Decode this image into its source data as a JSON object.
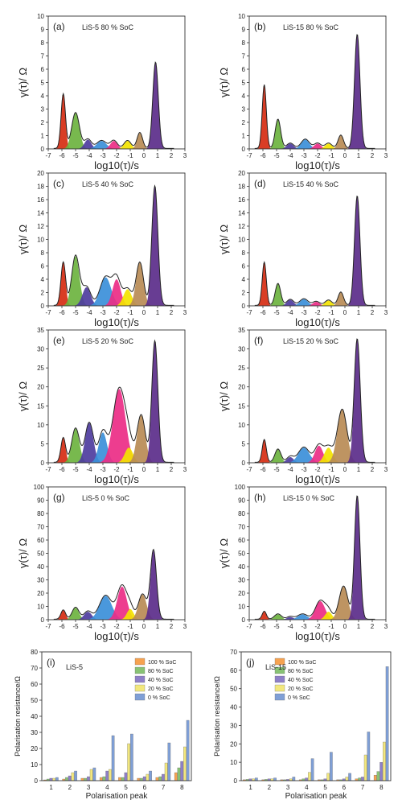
{
  "figure": {
    "panel_labels": [
      "(a)",
      "(b)",
      "(c)",
      "(d)",
      "(e)",
      "(f)",
      "(g)",
      "(h)",
      "(i)",
      "(j)"
    ]
  },
  "colors": {
    "peaks": [
      "#d62d12",
      "#6db33f",
      "#4e3c9e",
      "#3b8fd9",
      "#ec2d86",
      "#f3e300",
      "#b98b55",
      "#5b2c8a"
    ],
    "bars": [
      "#f6a250",
      "#88c274",
      "#8e7fc8",
      "#f2e77d",
      "#7f9fd6"
    ],
    "envelope": "#222222"
  },
  "chart_data": [
    {
      "type": "area",
      "panel": "(a)",
      "title": "LiS-5 80 % SoC",
      "xlabel": "log10(τ)/s",
      "ylabel": "γ(τ)/ Ω",
      "xlim": [
        -7,
        3
      ],
      "ylim": [
        0,
        10
      ],
      "xticks": [
        -7,
        -6,
        -5,
        -4,
        -3,
        -2,
        -1,
        0,
        1,
        2,
        3
      ],
      "yticks": [
        0,
        1,
        2,
        3,
        4,
        5,
        6,
        7,
        8,
        9,
        10
      ],
      "peaks": [
        {
          "peak": 1,
          "center": -5.9,
          "height": 4.1,
          "width": 0.16
        },
        {
          "peak": 2,
          "center": -5.0,
          "height": 2.7,
          "width": 0.28
        },
        {
          "peak": 3,
          "center": -4.1,
          "height": 0.7,
          "width": 0.25
        },
        {
          "peak": 4,
          "center": -3.1,
          "height": 0.6,
          "width": 0.35
        },
        {
          "peak": 5,
          "center": -2.2,
          "height": 0.6,
          "width": 0.25
        },
        {
          "peak": 6,
          "center": -1.2,
          "height": 0.6,
          "width": 0.25
        },
        {
          "peak": 7,
          "center": -0.3,
          "height": 1.2,
          "width": 0.2
        },
        {
          "peak": 8,
          "center": 0.85,
          "height": 6.5,
          "width": 0.2
        }
      ]
    },
    {
      "type": "area",
      "panel": "(b)",
      "title": "LiS-15 80 % SoC",
      "xlabel": "log10(τ)/s",
      "ylabel": "γ(τ)/ Ω",
      "xlim": [
        -7,
        3
      ],
      "ylim": [
        0,
        10
      ],
      "xticks": [
        -7,
        -6,
        -5,
        -4,
        -3,
        -2,
        -1,
        0,
        1,
        2,
        3
      ],
      "yticks": [
        0,
        1,
        2,
        3,
        4,
        5,
        6,
        7,
        8,
        9,
        10
      ],
      "peaks": [
        {
          "peak": 1,
          "center": -5.9,
          "height": 4.8,
          "width": 0.15
        },
        {
          "peak": 2,
          "center": -4.9,
          "height": 2.2,
          "width": 0.2
        },
        {
          "peak": 3,
          "center": -4.0,
          "height": 0.4,
          "width": 0.25
        },
        {
          "peak": 4,
          "center": -2.9,
          "height": 0.7,
          "width": 0.3
        },
        {
          "peak": 5,
          "center": -2.0,
          "height": 0.4,
          "width": 0.25
        },
        {
          "peak": 6,
          "center": -1.2,
          "height": 0.4,
          "width": 0.25
        },
        {
          "peak": 7,
          "center": -0.3,
          "height": 1.0,
          "width": 0.2
        },
        {
          "peak": 8,
          "center": 0.9,
          "height": 8.6,
          "width": 0.2
        }
      ]
    },
    {
      "type": "area",
      "panel": "(c)",
      "title": "LiS-5 40 % SoC",
      "xlabel": "log10(τ)/s",
      "ylabel": "γ(τ)/ Ω",
      "xlim": [
        -7,
        3
      ],
      "ylim": [
        0,
        20
      ],
      "xticks": [
        -7,
        -6,
        -5,
        -4,
        -3,
        -2,
        -1,
        0,
        1,
        2,
        3
      ],
      "yticks": [
        0,
        2,
        4,
        6,
        8,
        10,
        12,
        14,
        16,
        18,
        20
      ],
      "peaks": [
        {
          "peak": 1,
          "center": -5.9,
          "height": 6.5,
          "width": 0.17
        },
        {
          "peak": 2,
          "center": -5.0,
          "height": 7.5,
          "width": 0.28
        },
        {
          "peak": 3,
          "center": -4.2,
          "height": 2.8,
          "width": 0.3
        },
        {
          "peak": 4,
          "center": -2.8,
          "height": 4.3,
          "width": 0.4
        },
        {
          "peak": 5,
          "center": -2.0,
          "height": 4.0,
          "width": 0.3
        },
        {
          "peak": 6,
          "center": -1.2,
          "height": 2.5,
          "width": 0.3
        },
        {
          "peak": 7,
          "center": -0.3,
          "height": 6.5,
          "width": 0.27
        },
        {
          "peak": 8,
          "center": 0.8,
          "height": 18.0,
          "width": 0.22
        }
      ]
    },
    {
      "type": "area",
      "panel": "(d)",
      "title": "LiS-15 40 % SoC",
      "xlabel": "log10(τ)/s",
      "ylabel": "γ(τ)/ Ω",
      "xlim": [
        -7,
        3
      ],
      "ylim": [
        0,
        20
      ],
      "xticks": [
        -7,
        -6,
        -5,
        -4,
        -3,
        -2,
        -1,
        0,
        1,
        2,
        3
      ],
      "yticks": [
        0,
        2,
        4,
        6,
        8,
        10,
        12,
        14,
        16,
        18,
        20
      ],
      "peaks": [
        {
          "peak": 1,
          "center": -5.9,
          "height": 6.5,
          "width": 0.15
        },
        {
          "peak": 2,
          "center": -4.9,
          "height": 3.3,
          "width": 0.2
        },
        {
          "peak": 3,
          "center": -4.0,
          "height": 0.9,
          "width": 0.25
        },
        {
          "peak": 4,
          "center": -3.0,
          "height": 1.0,
          "width": 0.3
        },
        {
          "peak": 5,
          "center": -2.1,
          "height": 0.6,
          "width": 0.25
        },
        {
          "peak": 6,
          "center": -1.2,
          "height": 0.8,
          "width": 0.25
        },
        {
          "peak": 7,
          "center": -0.3,
          "height": 2.0,
          "width": 0.2
        },
        {
          "peak": 8,
          "center": 0.9,
          "height": 16.5,
          "width": 0.2
        }
      ]
    },
    {
      "type": "area",
      "panel": "(e)",
      "title": "LiS-5 20 % SoC",
      "xlabel": "log10(τ)/s",
      "ylabel": "γ(τ)/ Ω",
      "xlim": [
        -7,
        3
      ],
      "ylim": [
        0,
        35
      ],
      "xticks": [
        -7,
        -6,
        -5,
        -4,
        -3,
        -2,
        -1,
        0,
        1,
        2,
        3
      ],
      "yticks": [
        0,
        5,
        10,
        15,
        20,
        25,
        30,
        35
      ],
      "peaks": [
        {
          "peak": 1,
          "center": -5.9,
          "height": 6.5,
          "width": 0.17
        },
        {
          "peak": 2,
          "center": -5.0,
          "height": 9.0,
          "width": 0.28
        },
        {
          "peak": 3,
          "center": -4.0,
          "height": 10.5,
          "width": 0.3
        },
        {
          "peak": 4,
          "center": -3.0,
          "height": 8.0,
          "width": 0.3
        },
        {
          "peak": 5,
          "center": -1.8,
          "height": 19.5,
          "width": 0.45
        },
        {
          "peak": 6,
          "center": -1.1,
          "height": 4.0,
          "width": 0.3
        },
        {
          "peak": 7,
          "center": -0.2,
          "height": 12.5,
          "width": 0.3
        },
        {
          "peak": 8,
          "center": 0.8,
          "height": 32.0,
          "width": 0.22
        }
      ]
    },
    {
      "type": "area",
      "panel": "(f)",
      "title": "LiS-15 20 % SoC",
      "xlabel": "log10(τ)/s",
      "ylabel": "γ(τ)/ Ω",
      "xlim": [
        -7,
        3
      ],
      "ylim": [
        0,
        35
      ],
      "xticks": [
        -7,
        -6,
        -5,
        -4,
        -3,
        -2,
        -1,
        0,
        1,
        2,
        3
      ],
      "yticks": [
        0,
        5,
        10,
        15,
        20,
        25,
        30,
        35
      ],
      "peaks": [
        {
          "peak": 1,
          "center": -5.9,
          "height": 6.0,
          "width": 0.15
        },
        {
          "peak": 2,
          "center": -4.9,
          "height": 3.5,
          "width": 0.22
        },
        {
          "peak": 3,
          "center": -4.0,
          "height": 1.5,
          "width": 0.25
        },
        {
          "peak": 4,
          "center": -3.0,
          "height": 4.0,
          "width": 0.4
        },
        {
          "peak": 5,
          "center": -1.9,
          "height": 4.5,
          "width": 0.3
        },
        {
          "peak": 6,
          "center": -1.2,
          "height": 4.0,
          "width": 0.3
        },
        {
          "peak": 7,
          "center": -0.2,
          "height": 14.0,
          "width": 0.35
        },
        {
          "peak": 8,
          "center": 0.9,
          "height": 32.5,
          "width": 0.22
        }
      ]
    },
    {
      "type": "area",
      "panel": "(g)",
      "title": "LiS-5  0 % SoC",
      "xlabel": "log10(τ)/s",
      "ylabel": "γ(τ)/ Ω",
      "xlim": [
        -7,
        3
      ],
      "ylim": [
        0,
        100
      ],
      "xticks": [
        -7,
        -6,
        -5,
        -4,
        -3,
        -2,
        -1,
        0,
        1,
        2,
        3
      ],
      "yticks": [
        0,
        10,
        20,
        30,
        40,
        50,
        60,
        70,
        80,
        90,
        100
      ],
      "peaks": [
        {
          "peak": 1,
          "center": -5.9,
          "height": 7.0,
          "width": 0.17
        },
        {
          "peak": 2,
          "center": -5.0,
          "height": 9.0,
          "width": 0.25
        },
        {
          "peak": 3,
          "center": -4.1,
          "height": 6.0,
          "width": 0.28
        },
        {
          "peak": 4,
          "center": -2.8,
          "height": 18.0,
          "width": 0.45
        },
        {
          "peak": 5,
          "center": -1.6,
          "height": 25.0,
          "width": 0.35
        },
        {
          "peak": 6,
          "center": -1.0,
          "height": 8.0,
          "width": 0.25
        },
        {
          "peak": 7,
          "center": -0.1,
          "height": 19.0,
          "width": 0.3
        },
        {
          "peak": 8,
          "center": 0.7,
          "height": 52.0,
          "width": 0.22
        }
      ]
    },
    {
      "type": "area",
      "panel": "(h)",
      "title": "LiS-15 0 % SoC",
      "xlabel": "log10(τ)/s",
      "ylabel": "γ(τ)/ Ω",
      "xlim": [
        -7,
        3
      ],
      "ylim": [
        0,
        100
      ],
      "xticks": [
        -7,
        -6,
        -5,
        -4,
        -3,
        -2,
        -1,
        0,
        1,
        2,
        3
      ],
      "yticks": [
        0,
        10,
        20,
        30,
        40,
        50,
        60,
        70,
        80,
        90,
        100
      ],
      "peaks": [
        {
          "peak": 1,
          "center": -5.9,
          "height": 6.0,
          "width": 0.15
        },
        {
          "peak": 2,
          "center": -4.9,
          "height": 4.0,
          "width": 0.25
        },
        {
          "peak": 3,
          "center": -4.0,
          "height": 2.0,
          "width": 0.25
        },
        {
          "peak": 4,
          "center": -3.1,
          "height": 4.0,
          "width": 0.35
        },
        {
          "peak": 5,
          "center": -1.8,
          "height": 14.0,
          "width": 0.35
        },
        {
          "peak": 6,
          "center": -1.2,
          "height": 6.0,
          "width": 0.25
        },
        {
          "peak": 7,
          "center": -0.1,
          "height": 25.0,
          "width": 0.32
        },
        {
          "peak": 8,
          "center": 0.9,
          "height": 93.0,
          "width": 0.2
        }
      ]
    },
    {
      "type": "bar",
      "panel": "(i)",
      "title": "LiS-5",
      "xlabel": "Polarisation peak",
      "ylabel": "Polarisation resistance/Ω",
      "ylim": [
        0,
        80
      ],
      "yticks": [
        0,
        10,
        20,
        30,
        40,
        50,
        60,
        70,
        80
      ],
      "categories": [
        "1",
        "2",
        "3",
        "4",
        "5",
        "6",
        "7",
        "8"
      ],
      "legend": "top-right",
      "series": [
        {
          "name": "100 % SoC",
          "values": [
            0.5,
            1.0,
            1.5,
            2.0,
            2.0,
            1.5,
            2.0,
            5.0
          ]
        },
        {
          "name": "80 % SoC",
          "values": [
            1.0,
            2.0,
            1.5,
            2.5,
            2.0,
            1.5,
            2.5,
            8.0
          ]
        },
        {
          "name": "40 % SoC",
          "values": [
            1.5,
            3.0,
            2.5,
            6.0,
            5.0,
            2.5,
            4.0,
            12.0
          ]
        },
        {
          "name": "20 % SoC",
          "values": [
            1.5,
            5.0,
            7.0,
            7.0,
            23.0,
            4.0,
            11.0,
            21.0
          ]
        },
        {
          "name": "0 % SoC",
          "values": [
            2.0,
            6.0,
            8.0,
            28.0,
            29.0,
            6.0,
            23.5,
            37.5
          ]
        }
      ]
    },
    {
      "type": "bar",
      "panel": "(j)",
      "title": "LiS-15",
      "xlabel": "Polarisation peak",
      "ylabel": "Polarisation resistance/Ω",
      "ylim": [
        0,
        70
      ],
      "yticks": [
        0,
        10,
        20,
        30,
        40,
        50,
        60,
        70
      ],
      "categories": [
        "1",
        "2",
        "3",
        "4",
        "5",
        "6",
        "7",
        "8"
      ],
      "legend": "top-left",
      "series": [
        {
          "name": "100 % SoC",
          "values": [
            0.5,
            0.5,
            0.5,
            0.5,
            0.5,
            0.5,
            1.0,
            3.0
          ]
        },
        {
          "name": "80 % SoC",
          "values": [
            0.7,
            0.7,
            0.5,
            1.0,
            0.5,
            0.5,
            1.5,
            5.0
          ]
        },
        {
          "name": "40 % SoC",
          "values": [
            1.0,
            1.0,
            0.7,
            1.5,
            1.0,
            1.0,
            2.0,
            10.0
          ]
        },
        {
          "name": "20 % SoC",
          "values": [
            1.0,
            1.0,
            1.0,
            4.5,
            4.0,
            2.0,
            14.0,
            21.0
          ]
        },
        {
          "name": "0 % SoC",
          "values": [
            1.5,
            1.5,
            2.0,
            12.0,
            15.5,
            4.0,
            26.5,
            62.0
          ]
        }
      ]
    }
  ]
}
